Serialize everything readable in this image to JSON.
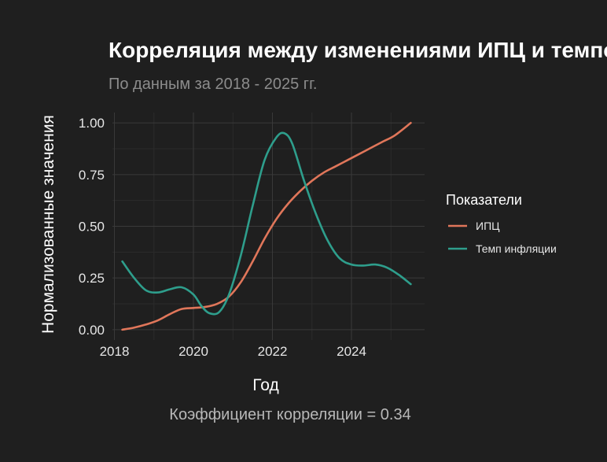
{
  "colors": {
    "background": "#1f1f1f",
    "grid_major": "#3a3a3a",
    "grid_minor": "#2b2b2b",
    "cpi": "#e0765a",
    "inflation": "#2e9e8c"
  },
  "chart_data": {
    "type": "line",
    "title": "Корреляция между изменениями ИПЦ и темпом инфляции",
    "subtitle": "По данным за 2018 - 2025 гг.",
    "xlabel": "Год",
    "ylabel": "Нормализованные значения",
    "caption": "Коэффициент корреляции = 0.34",
    "xlim": [
      2017.95,
      2025.85
    ],
    "ylim": [
      -0.05,
      1.05
    ],
    "x_ticks": [
      2018,
      2020,
      2022,
      2024
    ],
    "x_tick_labels": [
      "2018",
      "2020",
      "2022",
      "2024"
    ],
    "y_ticks": [
      0,
      0.25,
      0.5,
      0.75,
      1.0
    ],
    "y_tick_labels": [
      "0.00",
      "0.25",
      "0.50",
      "0.75",
      "1.00"
    ],
    "grid": true,
    "legend": {
      "title": "Показатели",
      "position": "right"
    },
    "series": [
      {
        "name": "ИПЦ",
        "color": "#e0765a",
        "x": [
          2018.2,
          2018.5,
          2018.8,
          2019.1,
          2019.4,
          2019.7,
          2020.0,
          2020.3,
          2020.6,
          2020.9,
          2021.2,
          2021.5,
          2021.8,
          2022.1,
          2022.4,
          2022.7,
          2023.0,
          2023.3,
          2023.6,
          2023.9,
          2024.2,
          2024.5,
          2024.8,
          2025.1,
          2025.5
        ],
        "y": [
          0.0,
          0.01,
          0.025,
          0.045,
          0.075,
          0.1,
          0.105,
          0.11,
          0.125,
          0.16,
          0.23,
          0.33,
          0.44,
          0.535,
          0.61,
          0.67,
          0.72,
          0.76,
          0.79,
          0.82,
          0.85,
          0.88,
          0.91,
          0.94,
          1.0
        ]
      },
      {
        "name": "Темп инфляции",
        "color": "#2e9e8c",
        "x": [
          2018.2,
          2018.5,
          2018.8,
          2019.1,
          2019.4,
          2019.7,
          2020.0,
          2020.2,
          2020.4,
          2020.65,
          2020.9,
          2021.2,
          2021.5,
          2021.8,
          2022.1,
          2022.3,
          2022.5,
          2022.8,
          2023.1,
          2023.4,
          2023.7,
          2024.0,
          2024.3,
          2024.6,
          2024.9,
          2025.2,
          2025.5
        ],
        "y": [
          0.33,
          0.25,
          0.19,
          0.18,
          0.195,
          0.205,
          0.17,
          0.115,
          0.08,
          0.085,
          0.17,
          0.36,
          0.6,
          0.82,
          0.93,
          0.95,
          0.9,
          0.72,
          0.56,
          0.43,
          0.345,
          0.315,
          0.31,
          0.315,
          0.3,
          0.265,
          0.22
        ]
      }
    ]
  }
}
